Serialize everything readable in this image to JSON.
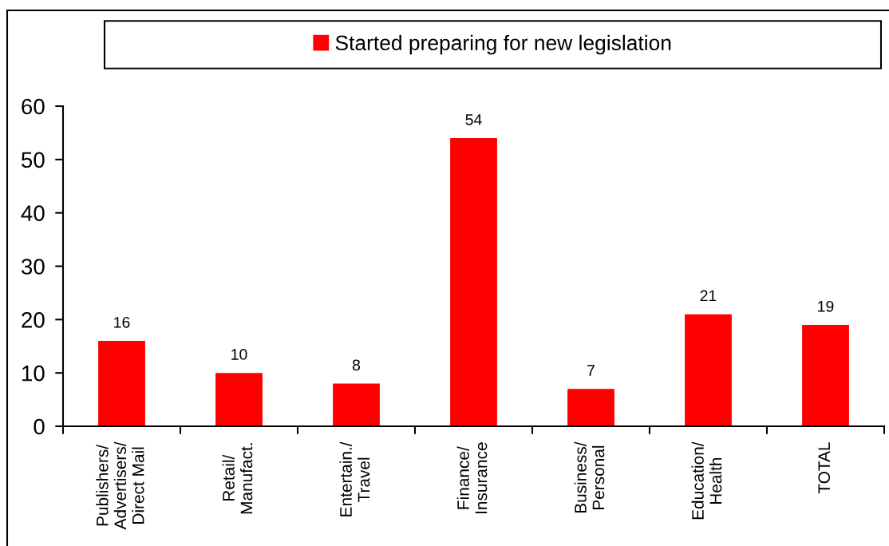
{
  "chart_data": {
    "type": "bar",
    "categories": [
      "Publishers/\nAdvertisers/\nDirect Mail",
      "Retail/\nManufact.",
      "Entertain./\nTravel",
      "Finance/\nInsurance",
      "Business/\nPersonal",
      "Education/\nHealth",
      "TOTAL"
    ],
    "series": [
      {
        "name": "Started preparing for new legislation",
        "color": "#ff0000",
        "values": [
          16,
          10,
          8,
          54,
          7,
          21,
          19
        ]
      }
    ],
    "ylim": [
      0,
      60
    ],
    "yticks": [
      0,
      10,
      20,
      30,
      40,
      50,
      60
    ],
    "data_labels": true,
    "legend": "top",
    "grid": false
  }
}
